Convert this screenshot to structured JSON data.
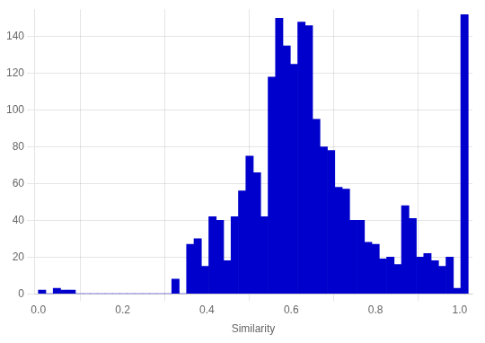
{
  "chart_data": {
    "type": "histogram",
    "bins": [
      0,
      0.017586,
      0.035172,
      0.052759,
      0.070345,
      0.087931,
      0.105517,
      0.123103,
      0.14069,
      0.158276,
      0.175862,
      0.193448,
      0.211034,
      0.228621,
      0.246207,
      0.263793,
      0.281379,
      0.298966,
      0.316552,
      0.334138,
      0.351724,
      0.36931,
      0.386897,
      0.404483,
      0.422069,
      0.439655,
      0.457241,
      0.474828,
      0.492414,
      0.51,
      0.527586,
      0.545172,
      0.562759,
      0.580345,
      0.597931,
      0.615517,
      0.633103,
      0.65069,
      0.668276,
      0.685862,
      0.703448,
      0.721034,
      0.738621,
      0.756207,
      0.773793,
      0.791379,
      0.808966,
      0.826552,
      0.844138,
      0.861724,
      0.87931,
      0.896897,
      0.914483,
      0.932069,
      0.949655,
      0.967241,
      0.984828,
      1.002414,
      1.02
    ],
    "values": [
      2,
      0,
      3,
      2,
      2,
      0,
      0,
      0,
      0,
      0,
      0,
      0,
      0,
      0,
      0,
      0,
      0,
      0,
      8,
      0,
      27,
      30,
      15,
      42,
      40,
      18,
      42,
      56,
      75,
      66,
      42,
      118,
      150,
      135,
      125,
      148,
      146,
      95,
      80,
      78,
      58,
      57,
      40,
      40,
      28,
      27,
      19,
      20,
      16,
      48,
      41,
      20,
      22,
      18,
      15,
      20,
      3,
      152
    ],
    "color": "#0000CC",
    "xlabel": "Similarity",
    "xlim": [
      -0.01,
      1.03
    ],
    "xticks": [
      {
        "value": 0,
        "label": "0.0"
      },
      0.2,
      0.4,
      0.6,
      0.8,
      {
        "value": 1,
        "label": "1.0"
      }
    ],
    "ylim": [
      0,
      155
    ],
    "yticks": [
      0,
      20,
      40,
      60,
      80,
      100,
      120,
      140
    ],
    "grid": true
  }
}
